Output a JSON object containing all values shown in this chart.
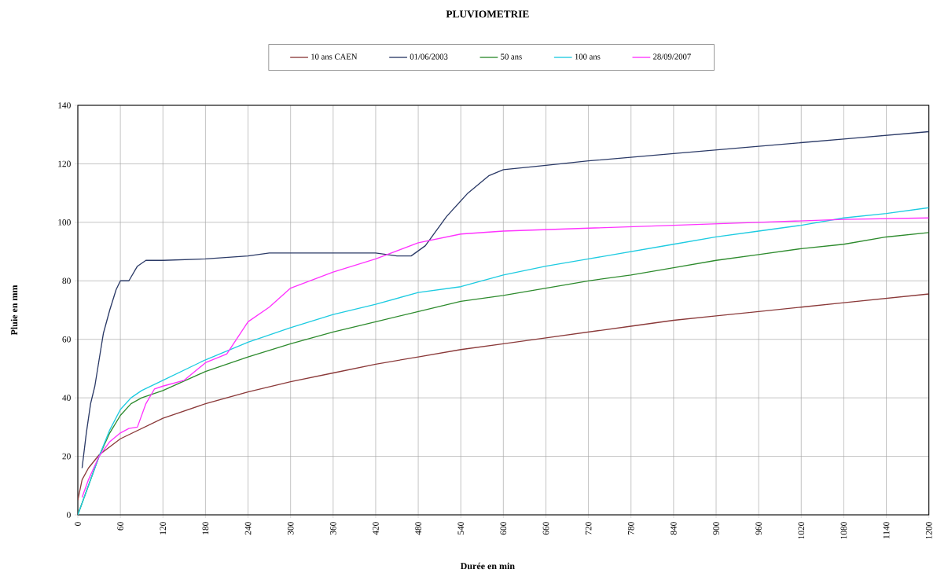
{
  "chart_data": {
    "type": "line",
    "title": "PLUVIOMETRIE",
    "xlabel": "Durée en min",
    "ylabel": "Pluie en mm",
    "xlim": [
      0,
      1200
    ],
    "xticks": [
      0,
      60,
      120,
      180,
      240,
      300,
      360,
      420,
      480,
      540,
      600,
      660,
      720,
      780,
      840,
      900,
      960,
      1020,
      1080,
      1140,
      1200
    ],
    "ylim": [
      0,
      140
    ],
    "yticks": [
      0,
      20,
      40,
      60,
      80,
      100,
      120,
      140
    ],
    "grid": true,
    "legend": "top",
    "marker": "none",
    "line_style": "solid",
    "series": [
      {
        "name": "10 ans CAEN",
        "color": "#8b3a3a",
        "x": [
          0,
          6,
          15,
          30,
          60,
          120,
          180,
          240,
          300,
          360,
          420,
          480,
          540,
          600,
          660,
          720,
          780,
          840,
          900,
          960,
          1020,
          1080,
          1140,
          1200
        ],
        "values": [
          5,
          12,
          16,
          20.5,
          26,
          33,
          38,
          42,
          45.5,
          48.5,
          51.5,
          54,
          56.5,
          58.5,
          60.5,
          62.5,
          64.5,
          66.5,
          68,
          69.5,
          71,
          72.5,
          74,
          75.5
        ]
      },
      {
        "name": "01/06/2003",
        "color": "#2b3a67",
        "x": [
          6,
          12,
          18,
          24,
          30,
          36,
          45,
          54,
          60,
          72,
          84,
          96,
          120,
          180,
          240,
          270,
          360,
          420,
          450,
          470,
          490,
          520,
          550,
          580,
          600,
          660,
          720,
          840,
          960,
          1080,
          1200
        ],
        "values": [
          16,
          28,
          38,
          44,
          53,
          62,
          70,
          77,
          80,
          80,
          85,
          87,
          87,
          87.5,
          88.5,
          89.5,
          89.5,
          89.5,
          88.5,
          88.5,
          92,
          102,
          110,
          116,
          118,
          119.5,
          121,
          123.5,
          126,
          128.5,
          131
        ]
      },
      {
        "name": "50 ans",
        "color": "#2e8b2e",
        "x": [
          0,
          30,
          45,
          60,
          75,
          90,
          120,
          180,
          240,
          300,
          360,
          420,
          480,
          540,
          600,
          660,
          720,
          780,
          840,
          900,
          960,
          1020,
          1080,
          1140,
          1200
        ],
        "values": [
          0,
          20,
          28,
          34,
          38,
          40,
          42.5,
          49,
          54,
          58.5,
          62.5,
          66,
          69.5,
          73,
          75,
          77.5,
          80,
          82,
          84.5,
          87,
          89,
          91,
          92.5,
          95,
          96.5
        ]
      },
      {
        "name": "100 ans",
        "color": "#1ecbe1",
        "x": [
          0,
          15,
          30,
          45,
          60,
          75,
          90,
          120,
          180,
          240,
          300,
          360,
          420,
          480,
          540,
          600,
          660,
          720,
          780,
          840,
          900,
          960,
          1020,
          1080,
          1140,
          1200
        ],
        "values": [
          0,
          10,
          20,
          29,
          36,
          40,
          42.5,
          46,
          53,
          59,
          64,
          68.5,
          72,
          76,
          78,
          82,
          85,
          87.5,
          90,
          92.5,
          95,
          97,
          99,
          101.5,
          103,
          105
        ]
      },
      {
        "name": "28/09/2007",
        "color": "#ff33ff",
        "x": [
          6,
          15,
          30,
          45,
          60,
          72,
          84,
          96,
          108,
          120,
          150,
          180,
          210,
          240,
          270,
          300,
          360,
          420,
          480,
          540,
          600,
          720,
          840,
          960,
          1080,
          1200
        ],
        "values": [
          6,
          12,
          20,
          25,
          28,
          29.5,
          30,
          38,
          43,
          44,
          46,
          52,
          55,
          66,
          71,
          77.5,
          83,
          87.5,
          93,
          96,
          97,
          98,
          99,
          100,
          101,
          101.5
        ]
      }
    ]
  }
}
